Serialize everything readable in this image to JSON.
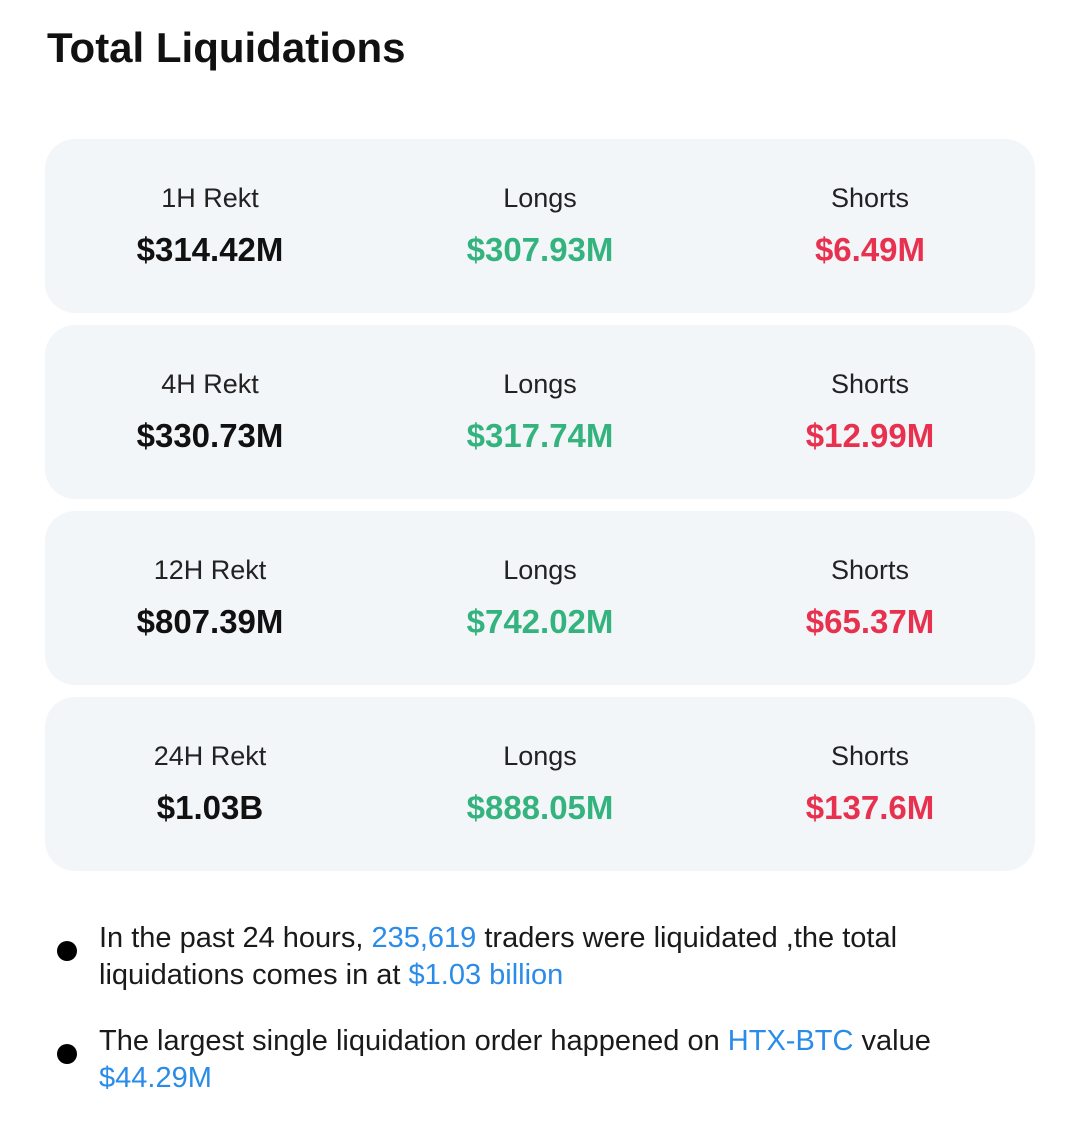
{
  "header": {
    "title": "Total Liquidations"
  },
  "cards": [
    {
      "label": "1H Rekt",
      "total": "$314.42M",
      "longs_label": "Longs",
      "longs": "$307.93M",
      "shorts_label": "Shorts",
      "shorts": "$6.49M"
    },
    {
      "label": "4H Rekt",
      "total": "$330.73M",
      "longs_label": "Longs",
      "longs": "$317.74M",
      "shorts_label": "Shorts",
      "shorts": "$12.99M"
    },
    {
      "label": "12H Rekt",
      "total": "$807.39M",
      "longs_label": "Longs",
      "longs": "$742.02M",
      "shorts_label": "Shorts",
      "shorts": "$65.37M"
    },
    {
      "label": "24H Rekt",
      "total": "$1.03B",
      "longs_label": "Longs",
      "longs": "$888.05M",
      "shorts_label": "Shorts",
      "shorts": "$137.6M"
    }
  ],
  "bullets": [
    [
      {
        "text": "In the past 24 hours, ",
        "link": false
      },
      {
        "text": "235,619",
        "link": true
      },
      {
        "text": " traders were liquidated ,the total liquidations comes in at ",
        "link": false
      },
      {
        "text": "$1.03 billion",
        "link": true
      }
    ],
    [
      {
        "text": "The largest single liquidation order happened on ",
        "link": false
      },
      {
        "text": "HTX-BTC",
        "link": true
      },
      {
        "text": " value ",
        "link": false
      },
      {
        "text": "$44.29M",
        "link": true
      }
    ]
  ]
}
